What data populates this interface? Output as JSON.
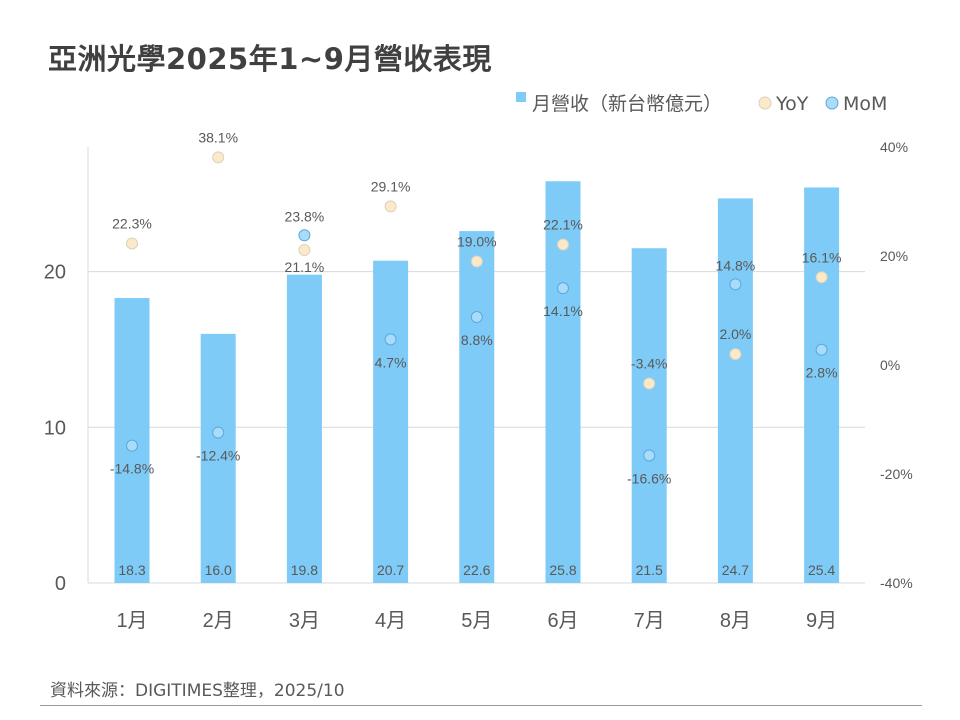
{
  "header": {
    "title": "亞洲光學2025年1~9月營收表現"
  },
  "footer": {
    "source": "資料來源：DIGITIMES整理，2025/10"
  },
  "chart_data": {
    "type": "bar",
    "title": "亞洲光學2025年1~9月營收表現",
    "categories": [
      "1月",
      "2月",
      "3月",
      "4月",
      "5月",
      "6月",
      "7月",
      "8月",
      "9月"
    ],
    "series": [
      {
        "name": "月營收（新台幣億元）",
        "type": "bar",
        "axis": "left",
        "values": [
          18.3,
          16.0,
          19.8,
          20.7,
          22.6,
          25.8,
          21.5,
          24.7,
          25.4
        ],
        "labels": [
          "18.3",
          "16.0",
          "19.8",
          "20.7",
          "22.6",
          "25.8",
          "21.5",
          "24.7",
          "25.4"
        ],
        "color": "#7ecbf7"
      },
      {
        "name": "YoY",
        "type": "scatter",
        "axis": "right",
        "values": [
          22.3,
          38.1,
          21.1,
          29.1,
          19.0,
          22.1,
          -3.4,
          2.0,
          16.1
        ],
        "labels": [
          "22.3%",
          "38.1%",
          "21.1%",
          "29.1%",
          "19.0%",
          "22.1%",
          "-3.4%",
          "2.0%",
          "16.1%"
        ],
        "color": "#fbe9c8"
      },
      {
        "name": "MoM",
        "type": "scatter",
        "axis": "right",
        "values": [
          -14.8,
          -12.4,
          23.8,
          4.7,
          8.8,
          14.1,
          -16.6,
          14.8,
          2.8
        ],
        "labels": [
          "-14.8%",
          "-12.4%",
          "23.8%",
          "4.7%",
          "8.8%",
          "14.1%",
          "-16.6%",
          "14.8%",
          "2.8%"
        ],
        "color": "#a9dcf9"
      }
    ],
    "y_left": {
      "min": 0,
      "max": 28,
      "ticks": [
        0,
        10,
        20
      ],
      "tick_labels": [
        "0",
        "10",
        "20"
      ]
    },
    "y_right": {
      "min": -40,
      "max": 40,
      "ticks": [
        40,
        20,
        0,
        -20,
        -40
      ],
      "tick_labels": [
        "40%",
        "20%",
        "0%",
        "-20%",
        "-40%"
      ]
    },
    "grid": true,
    "legend": {
      "position": "top-right",
      "entries": [
        "月營收（新台幣億元）",
        "YoY",
        "MoM"
      ]
    },
    "colors": {
      "bar": "#7ecbf7",
      "yoy_fill": "#fbe9c8",
      "yoy_stroke": "#d9d2c0",
      "mom_fill": "#a9dcf9",
      "mom_stroke": "#5aa8de",
      "grid": "#d9d9d9",
      "text": "#595959"
    }
  }
}
